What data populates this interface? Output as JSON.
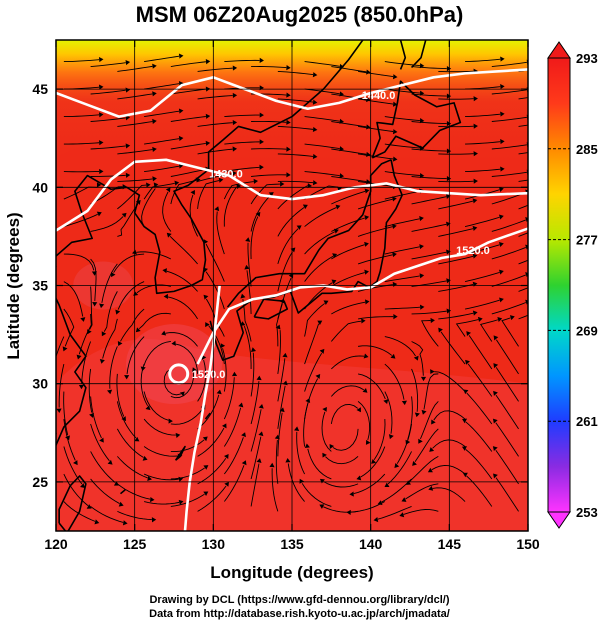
{
  "chart_data": {
    "type": "heatmap",
    "title": "MSM 06Z20Aug2025 (850.0hPa)",
    "xlabel": "Longitude (degrees)",
    "ylabel": "Latitude  (degrees)",
    "xlim": [
      120,
      150
    ],
    "ylim": [
      22.5,
      47.5
    ],
    "x_ticks": [
      120,
      125,
      130,
      135,
      140,
      145,
      150
    ],
    "y_ticks": [
      25,
      30,
      35,
      40,
      45
    ],
    "grid": true,
    "colorbar": {
      "placement": "right",
      "min": 253,
      "max": 293,
      "tick_labels": [
        253,
        261,
        269,
        277,
        285,
        293
      ],
      "colors": [
        "#ff33ff",
        "#8a2be2",
        "#1f3cff",
        "#0096ff",
        "#00d8c8",
        "#2fd22f",
        "#b8e800",
        "#ffd400",
        "#ff8a00",
        "#ff3a1a",
        "#f01a1a"
      ]
    },
    "contours": [
      {
        "label": "1440.0",
        "points": [
          [
            120,
            44.8
          ],
          [
            122,
            44.2
          ],
          [
            124,
            43.6
          ],
          [
            126,
            43.9
          ],
          [
            128,
            45.2
          ],
          [
            130,
            45.6
          ],
          [
            132,
            45.0
          ],
          [
            134,
            44.4
          ],
          [
            136,
            44.0
          ],
          [
            138,
            44.3
          ],
          [
            140,
            44.8
          ],
          [
            142,
            45.2
          ],
          [
            144,
            45.6
          ],
          [
            146,
            45.8
          ],
          [
            148,
            45.9
          ],
          [
            150,
            46.0
          ]
        ],
        "label_at": [
          140.5,
          44.7
        ]
      },
      {
        "label": "1430.0",
        "points": [
          [
            120,
            37.8
          ],
          [
            122,
            38.8
          ],
          [
            123.5,
            40.4
          ],
          [
            125,
            41.3
          ],
          [
            127,
            41.4
          ],
          [
            129,
            41.0
          ],
          [
            131,
            40.6
          ],
          [
            133,
            39.6
          ],
          [
            135,
            39.4
          ],
          [
            137,
            39.6
          ],
          [
            139,
            40.0
          ],
          [
            141,
            40.2
          ],
          [
            143,
            39.8
          ],
          [
            145,
            39.7
          ],
          [
            147,
            39.6
          ],
          [
            150,
            39.7
          ]
        ],
        "label_at": [
          130.8,
          40.7
        ]
      },
      {
        "label": "1520.0",
        "points": [
          [
            129,
            31.0
          ],
          [
            130,
            32.6
          ],
          [
            131,
            33.8
          ],
          [
            132.5,
            34.3
          ],
          [
            134,
            34.5
          ],
          [
            135.5,
            34.9
          ],
          [
            137,
            35.0
          ],
          [
            138.5,
            34.8
          ],
          [
            140,
            34.9
          ],
          [
            141.5,
            35.6
          ],
          [
            143,
            36.0
          ],
          [
            144.5,
            36.4
          ],
          [
            146,
            36.6
          ],
          [
            147.5,
            37.2
          ],
          [
            150,
            37.9
          ]
        ],
        "label_at": [
          146.5,
          36.8
        ]
      },
      {
        "label": "1520.0",
        "points": [
          [
            130.4,
            35.0
          ],
          [
            130.2,
            33.5
          ],
          [
            130.0,
            32.0
          ],
          [
            129.8,
            30.8
          ],
          [
            129.5,
            29.5
          ],
          [
            129.2,
            28.0
          ],
          [
            128.8,
            26.5
          ],
          [
            128.5,
            25.0
          ],
          [
            128.3,
            23.5
          ],
          [
            128.2,
            22.5
          ]
        ],
        "label_at": [
          129.7,
          30.5
        ]
      }
    ]
  },
  "credits": {
    "line1": "Drawing by DCL (https://www.gfd-dennou.org/library/dcl/)",
    "line2": "Data from http://database.rish.kyoto-u.ac.jp/arch/jmadata/"
  }
}
